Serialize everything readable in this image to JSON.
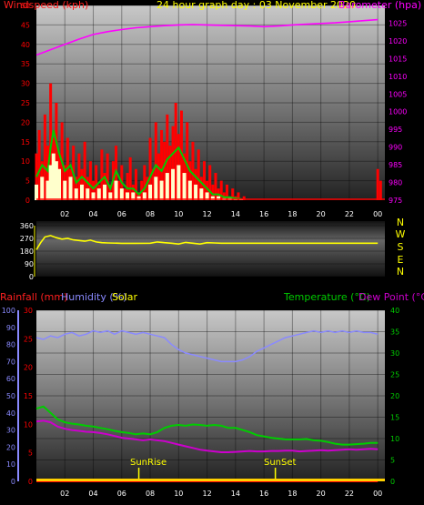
{
  "colors": {
    "wind": "#ff0000",
    "gust": "#00cc00",
    "avg": "#ffffcc",
    "pressure": "#ff00ff",
    "direction": "#ffff00",
    "rain": "#ff0000",
    "humidity": "#8a8aff",
    "temperature": "#00cc00",
    "dewpoint": "#cc00cc",
    "header": "#ffff00",
    "axis_white": "#ffffff"
  },
  "chart_data": [
    {
      "id": "wind-pressure",
      "type": "bar",
      "title": "24 hour graph day : 03 November 2020",
      "ylabel_left": "Windspeed (kph)",
      "ylabel_right": "Barometer (hpa)",
      "ylim_left": [
        0,
        50
      ],
      "ylim_right": [
        975,
        1030
      ],
      "xlim": [
        0,
        24.5
      ],
      "left_ticks": [
        "0",
        "5",
        "10",
        "15",
        "20",
        "25",
        "30",
        "35",
        "40",
        "45",
        "50"
      ],
      "right_ticks": [
        "975",
        "980",
        "985",
        "990",
        "995",
        "1000",
        "1005",
        "1010",
        "1015",
        "1020",
        "1025"
      ],
      "x_ticks": [
        "02",
        "04",
        "06",
        "08",
        "10",
        "12",
        "14",
        "16",
        "18",
        "20",
        "22",
        "00"
      ],
      "gust_kph": [
        [
          0.0,
          12
        ],
        [
          0.2,
          18
        ],
        [
          0.4,
          10
        ],
        [
          0.6,
          22
        ],
        [
          0.8,
          14
        ],
        [
          1.0,
          30
        ],
        [
          1.2,
          16
        ],
        [
          1.4,
          25
        ],
        [
          1.6,
          12
        ],
        [
          1.8,
          20
        ],
        [
          2.0,
          9
        ],
        [
          2.2,
          16
        ],
        [
          2.4,
          8
        ],
        [
          2.6,
          14
        ],
        [
          2.8,
          6
        ],
        [
          3.0,
          12
        ],
        [
          3.2,
          8
        ],
        [
          3.4,
          15
        ],
        [
          3.6,
          6
        ],
        [
          3.8,
          10
        ],
        [
          4.0,
          5
        ],
        [
          4.2,
          9
        ],
        [
          4.4,
          4
        ],
        [
          4.6,
          13
        ],
        [
          4.8,
          7
        ],
        [
          5.0,
          12
        ],
        [
          5.2,
          4
        ],
        [
          5.4,
          10
        ],
        [
          5.6,
          14
        ],
        [
          5.8,
          5
        ],
        [
          6.0,
          9
        ],
        [
          6.2,
          3
        ],
        [
          6.4,
          7
        ],
        [
          6.6,
          11
        ],
        [
          6.8,
          4
        ],
        [
          7.0,
          8
        ],
        [
          7.2,
          2
        ],
        [
          7.4,
          5
        ],
        [
          7.6,
          9
        ],
        [
          7.8,
          6
        ],
        [
          8.0,
          16
        ],
        [
          8.2,
          8
        ],
        [
          8.4,
          20
        ],
        [
          8.6,
          12
        ],
        [
          8.8,
          18
        ],
        [
          9.0,
          15
        ],
        [
          9.2,
          22
        ],
        [
          9.4,
          14
        ],
        [
          9.6,
          19
        ],
        [
          9.8,
          25
        ],
        [
          10.0,
          17
        ],
        [
          10.2,
          23
        ],
        [
          10.4,
          12
        ],
        [
          10.6,
          20
        ],
        [
          10.8,
          10
        ],
        [
          11.0,
          15
        ],
        [
          11.2,
          8
        ],
        [
          11.4,
          13
        ],
        [
          11.6,
          6
        ],
        [
          11.8,
          10
        ],
        [
          12.0,
          5
        ],
        [
          12.2,
          9
        ],
        [
          12.4,
          4
        ],
        [
          12.6,
          7
        ],
        [
          12.8,
          3
        ],
        [
          13.0,
          5
        ],
        [
          13.2,
          2
        ],
        [
          13.4,
          4
        ],
        [
          13.6,
          1
        ],
        [
          13.8,
          3
        ],
        [
          14.0,
          1
        ],
        [
          14.2,
          2
        ],
        [
          14.4,
          0.5
        ],
        [
          14.6,
          1
        ],
        [
          24.0,
          8
        ],
        [
          24.2,
          5
        ]
      ],
      "avg_kph": [
        [
          0.0,
          4
        ],
        [
          0.4,
          6
        ],
        [
          0.8,
          5
        ],
        [
          1.0,
          9
        ],
        [
          1.2,
          12
        ],
        [
          1.4,
          10
        ],
        [
          1.6,
          8
        ],
        [
          2.0,
          5
        ],
        [
          2.4,
          6
        ],
        [
          2.8,
          3
        ],
        [
          3.2,
          4
        ],
        [
          3.6,
          3
        ],
        [
          4.0,
          2
        ],
        [
          4.4,
          3
        ],
        [
          4.8,
          4
        ],
        [
          5.2,
          2
        ],
        [
          5.6,
          5
        ],
        [
          6.0,
          3
        ],
        [
          6.4,
          2
        ],
        [
          6.8,
          2
        ],
        [
          7.2,
          1
        ],
        [
          7.6,
          2
        ],
        [
          8.0,
          4
        ],
        [
          8.4,
          6
        ],
        [
          8.8,
          5
        ],
        [
          9.2,
          7
        ],
        [
          9.6,
          8
        ],
        [
          10.0,
          9
        ],
        [
          10.4,
          7
        ],
        [
          10.8,
          5
        ],
        [
          11.2,
          4
        ],
        [
          11.6,
          3
        ],
        [
          12.0,
          2
        ],
        [
          12.4,
          1
        ],
        [
          12.8,
          1
        ],
        [
          13.2,
          0.5
        ],
        [
          13.6,
          0.5
        ],
        [
          14.0,
          0.3
        ],
        [
          14.4,
          0.2
        ]
      ],
      "pressure_hpa": [
        [
          0,
          1016
        ],
        [
          1,
          1017.5
        ],
        [
          2,
          1019
        ],
        [
          3,
          1020.5
        ],
        [
          4,
          1021.8
        ],
        [
          5,
          1022.6
        ],
        [
          6,
          1023.2
        ],
        [
          7,
          1023.7
        ],
        [
          8,
          1024.0
        ],
        [
          9,
          1024.3
        ],
        [
          10,
          1024.5
        ],
        [
          11,
          1024.6
        ],
        [
          12,
          1024.5
        ],
        [
          13,
          1024.4
        ],
        [
          14,
          1024.3
        ],
        [
          15,
          1024.2
        ],
        [
          16,
          1024.0
        ],
        [
          17,
          1024.2
        ],
        [
          18,
          1024.5
        ],
        [
          19,
          1024.7
        ],
        [
          20,
          1024.9
        ],
        [
          21,
          1025.1
        ],
        [
          22,
          1025.4
        ],
        [
          23,
          1025.7
        ],
        [
          24,
          1026.0
        ]
      ]
    },
    {
      "id": "wind-direction",
      "type": "line",
      "ylim": [
        0,
        360
      ],
      "y_ticks": [
        "0",
        "90",
        "180",
        "270",
        "360"
      ],
      "compass": [
        "N",
        "W",
        "S",
        "E",
        "N"
      ],
      "xlim": [
        0,
        24.5
      ],
      "direction_deg": [
        [
          0,
          190
        ],
        [
          0.3,
          240
        ],
        [
          0.6,
          280
        ],
        [
          1.0,
          290
        ],
        [
          1.4,
          275
        ],
        [
          1.8,
          265
        ],
        [
          2.2,
          270
        ],
        [
          2.6,
          260
        ],
        [
          3.0,
          255
        ],
        [
          3.4,
          250
        ],
        [
          3.8,
          258
        ],
        [
          4.2,
          245
        ],
        [
          4.6,
          240
        ],
        [
          5.0,
          238
        ],
        [
          6,
          235
        ],
        [
          7,
          235
        ],
        [
          8,
          236
        ],
        [
          8.5,
          245
        ],
        [
          9,
          240
        ],
        [
          9.5,
          236
        ],
        [
          10,
          230
        ],
        [
          10.5,
          242
        ],
        [
          11,
          236
        ],
        [
          11.5,
          230
        ],
        [
          12,
          240
        ],
        [
          12.5,
          238
        ],
        [
          13,
          236
        ],
        [
          14,
          236
        ],
        [
          15,
          236
        ],
        [
          16,
          236
        ],
        [
          17,
          236
        ],
        [
          18,
          236
        ],
        [
          19,
          236
        ],
        [
          20,
          236
        ],
        [
          21,
          236
        ],
        [
          22,
          236
        ],
        [
          23,
          236
        ],
        [
          24,
          236
        ]
      ]
    },
    {
      "id": "rain-humidity-temp",
      "type": "line",
      "ylabel_rain": "Rainfall (mm)",
      "ylabel_humidity": "Humidity (%)",
      "ylabel_solar": "Solar",
      "ylabel_temp": "Temperature (°C)",
      "ylabel_dew": "Dew Point (°C)",
      "humidity_ticks": [
        "0",
        "10",
        "20",
        "30",
        "40",
        "50",
        "60",
        "70",
        "80",
        "90",
        "100"
      ],
      "rain_ticks": [
        "0",
        "5",
        "10",
        "15",
        "20",
        "25",
        "30"
      ],
      "temp_ticks": [
        "0",
        "5",
        "10",
        "15",
        "20",
        "25",
        "30",
        "35",
        "40"
      ],
      "x_ticks": [
        "02",
        "04",
        "06",
        "08",
        "10",
        "12",
        "14",
        "16",
        "18",
        "20",
        "22",
        "00"
      ],
      "xlim": [
        0,
        24.5
      ],
      "humidity_ylim": [
        0,
        100
      ],
      "temp_ylim": [
        0,
        40
      ],
      "sunrise_label": "SunRise",
      "sunset_label": "SunSet",
      "sunrise_hour": 7.2,
      "sunset_hour": 16.8,
      "humidity_pct": [
        [
          0,
          84
        ],
        [
          0.5,
          83
        ],
        [
          1,
          85
        ],
        [
          1.5,
          84
        ],
        [
          2,
          86
        ],
        [
          2.5,
          87
        ],
        [
          3,
          85
        ],
        [
          3.5,
          86
        ],
        [
          4,
          88
        ],
        [
          4.5,
          87
        ],
        [
          5,
          88
        ],
        [
          5.5,
          86
        ],
        [
          6,
          88
        ],
        [
          6.5,
          87
        ],
        [
          7,
          86
        ],
        [
          7.5,
          87
        ],
        [
          8,
          86
        ],
        [
          8.5,
          85
        ],
        [
          9,
          84
        ],
        [
          9.5,
          80
        ],
        [
          10,
          77
        ],
        [
          10.5,
          75
        ],
        [
          11,
          74
        ],
        [
          11.5,
          73
        ],
        [
          12,
          72
        ],
        [
          12.5,
          71
        ],
        [
          13,
          70
        ],
        [
          13.5,
          70
        ],
        [
          14,
          70
        ],
        [
          14.5,
          71
        ],
        [
          15,
          73
        ],
        [
          15.5,
          76
        ],
        [
          16,
          78
        ],
        [
          16.5,
          80
        ],
        [
          17,
          82
        ],
        [
          17.5,
          84
        ],
        [
          18,
          85
        ],
        [
          18.5,
          86
        ],
        [
          19,
          87
        ],
        [
          19.5,
          88
        ],
        [
          20,
          87
        ],
        [
          20.5,
          88
        ],
        [
          21,
          87
        ],
        [
          21.5,
          88
        ],
        [
          22,
          87
        ],
        [
          22.5,
          88
        ],
        [
          23,
          87
        ],
        [
          23.5,
          87
        ],
        [
          24,
          86
        ]
      ],
      "temperature_c": [
        [
          0,
          17
        ],
        [
          0.5,
          17.5
        ],
        [
          1,
          16
        ],
        [
          1.5,
          14.5
        ],
        [
          2,
          13.8
        ],
        [
          2.5,
          13.5
        ],
        [
          3,
          13.3
        ],
        [
          3.5,
          13.0
        ],
        [
          4,
          12.8
        ],
        [
          4.5,
          12.5
        ],
        [
          5,
          12.2
        ],
        [
          5.5,
          11.8
        ],
        [
          6,
          11.5
        ],
        [
          6.5,
          11.3
        ],
        [
          7,
          11.0
        ],
        [
          7.5,
          11.2
        ],
        [
          8,
          11.0
        ],
        [
          8.5,
          11.5
        ],
        [
          9,
          12.5
        ],
        [
          9.5,
          13.0
        ],
        [
          10,
          13.2
        ],
        [
          10.5,
          13.0
        ],
        [
          11,
          13.3
        ],
        [
          11.5,
          13.2
        ],
        [
          12,
          13.0
        ],
        [
          12.5,
          13.2
        ],
        [
          13,
          13.0
        ],
        [
          13.5,
          12.5
        ],
        [
          14,
          12.5
        ],
        [
          14.5,
          12.0
        ],
        [
          15,
          11.5
        ],
        [
          15.5,
          10.8
        ],
        [
          16,
          10.5
        ],
        [
          16.5,
          10.2
        ],
        [
          17,
          10.0
        ],
        [
          17.5,
          9.8
        ],
        [
          18,
          9.8
        ],
        [
          18.5,
          9.8
        ],
        [
          19,
          9.9
        ],
        [
          19.5,
          9.6
        ],
        [
          20,
          9.5
        ],
        [
          20.5,
          9.2
        ],
        [
          21,
          8.8
        ],
        [
          21.5,
          8.6
        ],
        [
          22,
          8.6
        ],
        [
          22.5,
          8.7
        ],
        [
          23,
          8.8
        ],
        [
          23.5,
          9.0
        ],
        [
          24,
          9.0
        ]
      ],
      "dewpoint_c": [
        [
          0,
          14
        ],
        [
          0.5,
          14.2
        ],
        [
          1,
          13.8
        ],
        [
          1.5,
          12.8
        ],
        [
          2,
          12.3
        ],
        [
          2.5,
          12.0
        ],
        [
          3,
          11.8
        ],
        [
          3.5,
          11.6
        ],
        [
          4,
          11.5
        ],
        [
          4.5,
          11.3
        ],
        [
          5,
          11.0
        ],
        [
          5.5,
          10.6
        ],
        [
          6,
          10.2
        ],
        [
          6.5,
          10.0
        ],
        [
          7,
          9.8
        ],
        [
          7.5,
          9.6
        ],
        [
          8,
          9.8
        ],
        [
          8.5,
          9.6
        ],
        [
          9,
          9.4
        ],
        [
          9.5,
          9.0
        ],
        [
          10,
          8.6
        ],
        [
          10.5,
          8.2
        ],
        [
          11,
          7.8
        ],
        [
          11.5,
          7.4
        ],
        [
          12,
          7.2
        ],
        [
          12.5,
          7.0
        ],
        [
          13,
          6.8
        ],
        [
          13.5,
          6.8
        ],
        [
          14,
          6.9
        ],
        [
          14.5,
          7.0
        ],
        [
          15,
          7.1
        ],
        [
          15.5,
          7.0
        ],
        [
          16,
          7.0
        ],
        [
          16.5,
          7.1
        ],
        [
          17,
          7.1
        ],
        [
          17.5,
          7.2
        ],
        [
          18,
          7.2
        ],
        [
          18.5,
          7.0
        ],
        [
          19,
          7.1
        ],
        [
          19.5,
          7.2
        ],
        [
          20,
          7.3
        ],
        [
          20.5,
          7.2
        ],
        [
          21,
          7.3
        ],
        [
          21.5,
          7.4
        ],
        [
          22,
          7.5
        ],
        [
          22.5,
          7.4
        ],
        [
          23,
          7.5
        ],
        [
          23.5,
          7.6
        ],
        [
          24,
          7.5
        ]
      ],
      "rain_mm": [
        [
          0,
          0
        ],
        [
          24,
          0
        ]
      ]
    }
  ]
}
